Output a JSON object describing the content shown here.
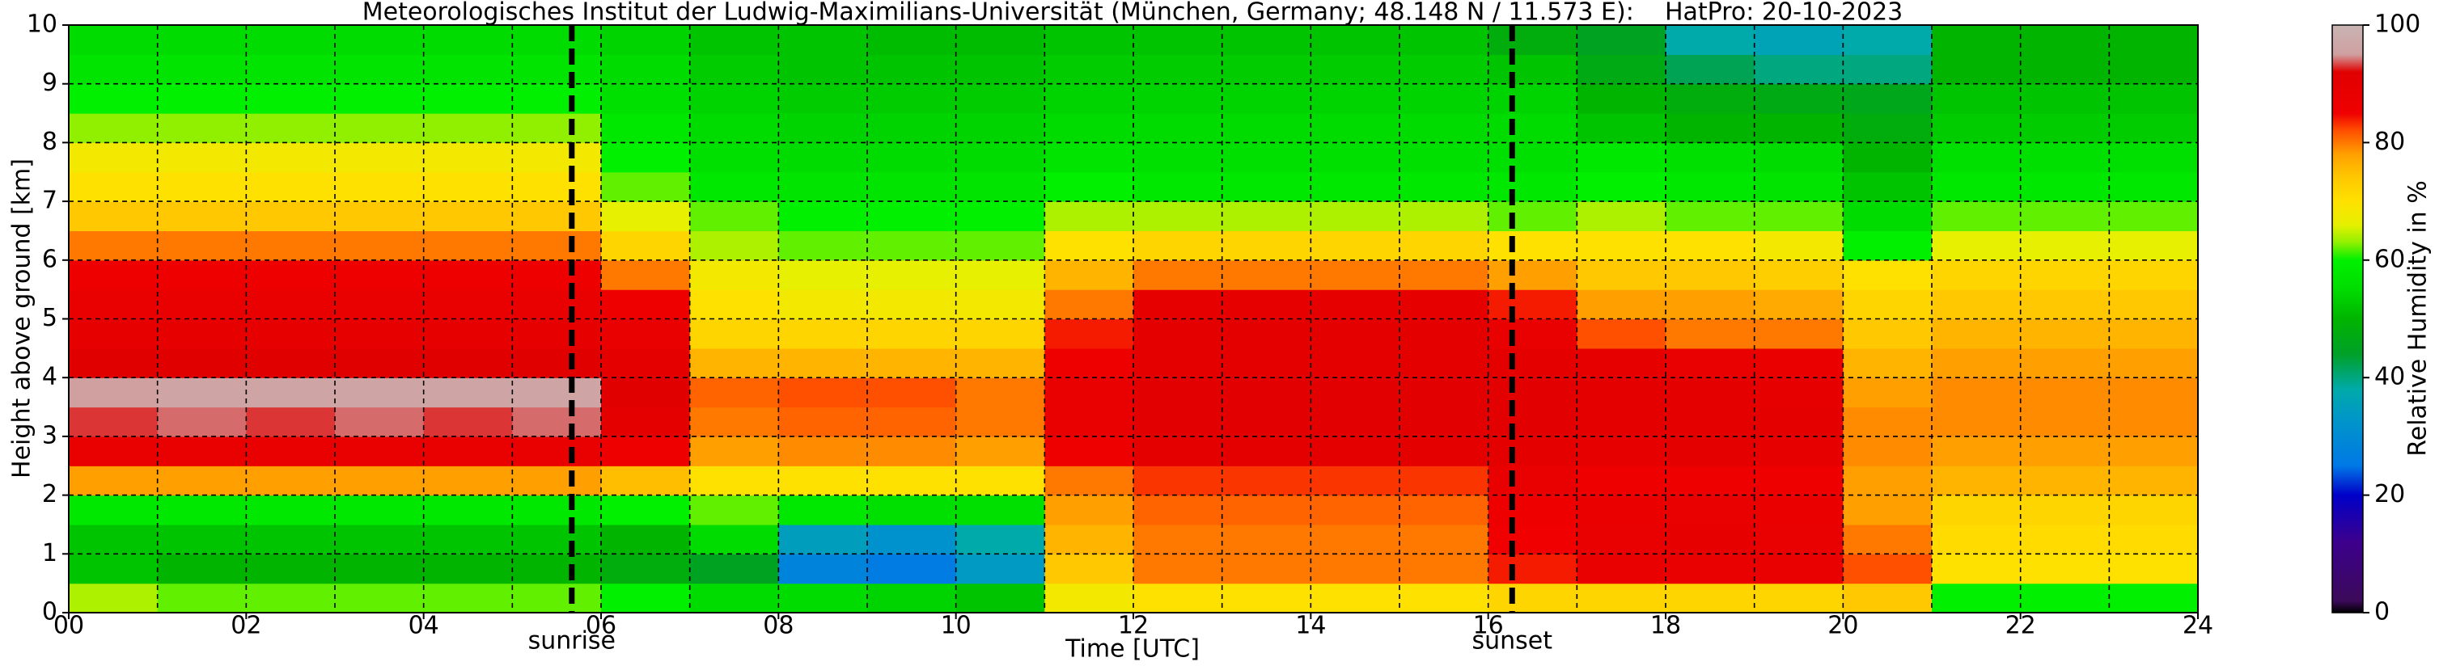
{
  "chart_data": {
    "type": "heatmap",
    "title": "Meteorologisches Institut der Ludwig-Maximilians-Universität (München, Germany; 48.148 N / 11.573 E):    HatPro: 20-10-2023",
    "xlabel": "Time [UTC]",
    "ylabel": "Height above ground [km]",
    "colorbar_label": "Relative Humidity in %",
    "xlim": [
      0,
      24
    ],
    "ylim": [
      0,
      10
    ],
    "xticks": [
      {
        "value": 0,
        "label": "00"
      },
      {
        "value": 2,
        "label": "02"
      },
      {
        "value": 4,
        "label": "04"
      },
      {
        "value": 6,
        "label": "06"
      },
      {
        "value": 8,
        "label": "08"
      },
      {
        "value": 10,
        "label": "10"
      },
      {
        "value": 12,
        "label": "12"
      },
      {
        "value": 14,
        "label": "14"
      },
      {
        "value": 16,
        "label": "16"
      },
      {
        "value": 18,
        "label": "18"
      },
      {
        "value": 20,
        "label": "20"
      },
      {
        "value": 22,
        "label": "22"
      },
      {
        "value": 24,
        "label": "24"
      }
    ],
    "x_minor_grid": [
      1,
      3,
      5,
      7,
      9,
      11,
      13,
      15,
      17,
      19,
      21,
      23
    ],
    "yticks": [
      0,
      1,
      2,
      3,
      4,
      5,
      6,
      7,
      8,
      9,
      10
    ],
    "grid": true,
    "clim": [
      0,
      100
    ],
    "cticks": [
      0,
      20,
      40,
      60,
      80,
      100
    ],
    "colorscale": [
      [
        0,
        "#000000"
      ],
      [
        2,
        "#3c0a5a"
      ],
      [
        12,
        "#3c008c"
      ],
      [
        20,
        "#0000c8"
      ],
      [
        25,
        "#0078e6"
      ],
      [
        33,
        "#0096c8"
      ],
      [
        38,
        "#00aaaa"
      ],
      [
        44,
        "#00a028"
      ],
      [
        50,
        "#00b400"
      ],
      [
        55,
        "#00dc00"
      ],
      [
        60,
        "#00f000"
      ],
      [
        63,
        "#90f000"
      ],
      [
        66,
        "#e6f000"
      ],
      [
        70,
        "#ffe100"
      ],
      [
        74,
        "#ffc800"
      ],
      [
        78,
        "#ffa000"
      ],
      [
        82,
        "#ff5000"
      ],
      [
        85,
        "#f00000"
      ],
      [
        92,
        "#e00000"
      ],
      [
        95,
        "#d0a0a0"
      ],
      [
        100,
        "#c8b4b4"
      ]
    ],
    "annotations": [
      {
        "x": 5.67,
        "label": "sunrise"
      },
      {
        "x": 16.27,
        "label": "sunset"
      }
    ],
    "x_bins": [
      0,
      1,
      2,
      3,
      4,
      5,
      6,
      7,
      8,
      9,
      10,
      11,
      12,
      13,
      14,
      15,
      16,
      17,
      18,
      19,
      20,
      21,
      22,
      23,
      24
    ],
    "y_bins": [
      0,
      0.5,
      1,
      1.5,
      2,
      2.5,
      3,
      3.5,
      4,
      4.5,
      5,
      5.5,
      6,
      6.5,
      7,
      7.5,
      8,
      8.5,
      9,
      9.5,
      10
    ],
    "z": [
      [
        64,
        52,
        52,
        58,
        78,
        88,
        93,
        95,
        92,
        89,
        88,
        86,
        80,
        74,
        70,
        68,
        63,
        60,
        57,
        55
      ],
      [
        62,
        50,
        52,
        58,
        78,
        88,
        94,
        96,
        92,
        89,
        88,
        86,
        80,
        74,
        70,
        68,
        63,
        60,
        57,
        55
      ],
      [
        62,
        50,
        52,
        58,
        78,
        88,
        93,
        96,
        92,
        89,
        88,
        86,
        80,
        74,
        70,
        68,
        63,
        60,
        57,
        55
      ],
      [
        62,
        50,
        52,
        58,
        78,
        88,
        94,
        96,
        92,
        89,
        88,
        86,
        80,
        74,
        70,
        68,
        63,
        60,
        57,
        55
      ],
      [
        62,
        50,
        52,
        58,
        78,
        88,
        93,
        96,
        92,
        89,
        88,
        86,
        80,
        74,
        70,
        68,
        63,
        60,
        57,
        55
      ],
      [
        62,
        50,
        52,
        58,
        78,
        88,
        94,
        96,
        92,
        89,
        88,
        86,
        80,
        74,
        70,
        68,
        63,
        60,
        57,
        55
      ],
      [
        60,
        48,
        50,
        60,
        75,
        86,
        90,
        92,
        90,
        88,
        86,
        80,
        72,
        66,
        62,
        60,
        58,
        56,
        55,
        54
      ],
      [
        55,
        45,
        55,
        62,
        70,
        78,
        80,
        81,
        76,
        72,
        70,
        68,
        64,
        62,
        58,
        56,
        55,
        54,
        53,
        52
      ],
      [
        55,
        28,
        35,
        58,
        70,
        79,
        81,
        82,
        76,
        72,
        68,
        66,
        62,
        60,
        57,
        55,
        54,
        53,
        52,
        52
      ],
      [
        54,
        26,
        32,
        56,
        70,
        79,
        81,
        82,
        76,
        72,
        68,
        66,
        62,
        60,
        57,
        55,
        54,
        53,
        52,
        51
      ],
      [
        52,
        34,
        38,
        56,
        70,
        78,
        80,
        80,
        76,
        72,
        68,
        66,
        62,
        60,
        57,
        55,
        54,
        53,
        52,
        51
      ],
      [
        68,
        74,
        76,
        78,
        80,
        86,
        88,
        88,
        86,
        84,
        80,
        76,
        70,
        64,
        60,
        57,
        55,
        54,
        53,
        52
      ],
      [
        70,
        80,
        80,
        81,
        83,
        90,
        91,
        91,
        90,
        90,
        89,
        80,
        72,
        64,
        58,
        56,
        55,
        54,
        53,
        52
      ],
      [
        70,
        80,
        80,
        81,
        83,
        90,
        91,
        91,
        90,
        90,
        89,
        80,
        72,
        64,
        58,
        56,
        55,
        54,
        53,
        52
      ],
      [
        70,
        80,
        80,
        81,
        83,
        90,
        91,
        91,
        90,
        90,
        89,
        80,
        72,
        64,
        58,
        56,
        55,
        54,
        53,
        52
      ],
      [
        70,
        80,
        80,
        81,
        83,
        90,
        91,
        91,
        90,
        90,
        89,
        80,
        72,
        64,
        58,
        56,
        55,
        54,
        53,
        52
      ],
      [
        72,
        84,
        85,
        86,
        88,
        90,
        91,
        91,
        90,
        88,
        84,
        78,
        70,
        62,
        58,
        56,
        55,
        54,
        52,
        48
      ],
      [
        72,
        88,
        88,
        87,
        86,
        89,
        90,
        90,
        89,
        82,
        78,
        74,
        70,
        64,
        60,
        58,
        52,
        50,
        47,
        45
      ],
      [
        72,
        88,
        89,
        88,
        86,
        90,
        90,
        90,
        88,
        80,
        78,
        74,
        70,
        62,
        58,
        56,
        50,
        48,
        42,
        38
      ],
      [
        72,
        88,
        88,
        87,
        86,
        89,
        90,
        89,
        87,
        80,
        77,
        73,
        68,
        62,
        57,
        55,
        50,
        47,
        40,
        36
      ],
      [
        74,
        82,
        80,
        78,
        78,
        79,
        79,
        78,
        76,
        74,
        72,
        70,
        60,
        55,
        52,
        50,
        48,
        46,
        40,
        38
      ],
      [
        60,
        70,
        71,
        72,
        76,
        78,
        79,
        79,
        78,
        76,
        74,
        72,
        66,
        62,
        58,
        56,
        53,
        52,
        50,
        50
      ],
      [
        60,
        70,
        71,
        72,
        76,
        78,
        79,
        79,
        78,
        76,
        74,
        72,
        66,
        62,
        58,
        56,
        53,
        52,
        50,
        50
      ],
      [
        60,
        70,
        71,
        72,
        76,
        78,
        79,
        79,
        78,
        76,
        74,
        72,
        66,
        62,
        58,
        56,
        53,
        52,
        50,
        50
      ]
    ]
  }
}
